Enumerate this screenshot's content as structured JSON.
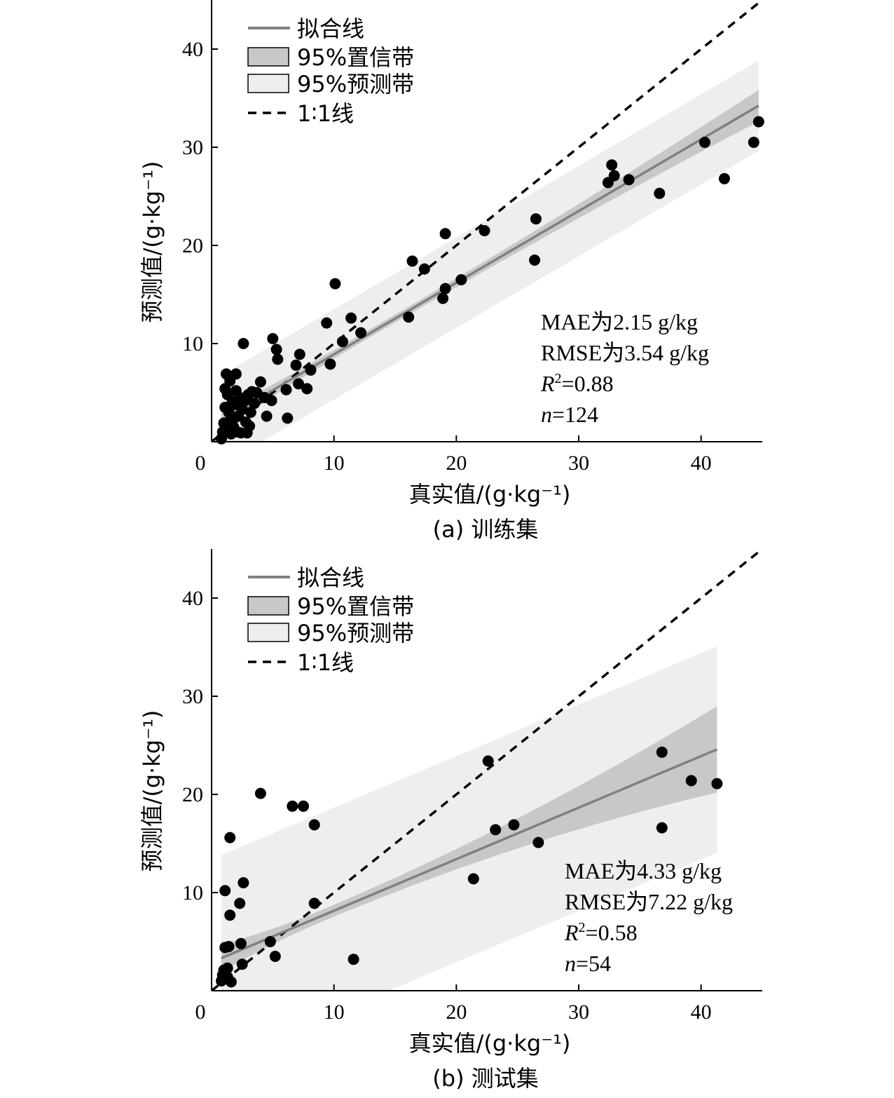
{
  "chart_data": [
    {
      "type": "scatter",
      "caption": "(a) 训练集",
      "xlabel": "真实值/(g·kg⁻¹)",
      "ylabel": "预测值/(g·kg⁻¹)",
      "xlim": [
        0,
        45
      ],
      "ylim": [
        0,
        45
      ],
      "xticks": [
        0,
        10,
        20,
        30,
        40
      ],
      "yticks": [
        10,
        20,
        30,
        40
      ],
      "legend": {
        "placement": "top-left",
        "fit_label": "拟合线",
        "ci_label": "95%置信带",
        "pi_label": "95%预测带",
        "ref_label": "1∶1线"
      },
      "annotations": [
        "MAE为2.15 g/kg",
        "RMSE为3.54 g/kg",
        "R²=0.88",
        "n=124"
      ],
      "fit": {
        "x_range": [
          0.8,
          44.7
        ],
        "slope": 0.73,
        "intercept": 1.6
      },
      "confidence_band": {
        "half_width_low_x": 0.8,
        "half_width_mid": 0.4,
        "half_width_high_x": 1.6,
        "mid_x": 14
      },
      "prediction_band": {
        "half_width": 4.6
      },
      "colors": {
        "fit": "#808080",
        "ci": "#c8c8c8",
        "pi": "#eeeeee",
        "points": "#000000"
      },
      "points": [
        [
          0.8,
          0.3
        ],
        [
          0.9,
          1.0
        ],
        [
          1.0,
          1.9
        ],
        [
          1.1,
          3.5
        ],
        [
          1.1,
          5.4
        ],
        [
          1.2,
          6.9
        ],
        [
          1.3,
          1.2
        ],
        [
          1.3,
          4.8
        ],
        [
          1.4,
          3.0
        ],
        [
          1.5,
          6.2
        ],
        [
          1.6,
          0.8
        ],
        [
          1.6,
          2.2
        ],
        [
          1.7,
          4.1
        ],
        [
          1.8,
          1.5
        ],
        [
          1.9,
          3.8
        ],
        [
          2.0,
          6.9
        ],
        [
          2.0,
          5.2
        ],
        [
          2.1,
          1.0
        ],
        [
          2.2,
          2.6
        ],
        [
          2.3,
          4.5
        ],
        [
          2.4,
          0.9
        ],
        [
          2.5,
          3.3
        ],
        [
          2.6,
          10.0
        ],
        [
          2.7,
          4.2
        ],
        [
          2.8,
          2.0
        ],
        [
          2.9,
          0.9
        ],
        [
          3.0,
          4.8
        ],
        [
          3.1,
          1.6
        ],
        [
          3.2,
          3.0
        ],
        [
          3.3,
          5.1
        ],
        [
          3.5,
          3.9
        ],
        [
          3.7,
          5.0
        ],
        [
          4.0,
          6.1
        ],
        [
          4.3,
          4.5
        ],
        [
          4.5,
          2.6
        ],
        [
          4.9,
          4.2
        ],
        [
          5.0,
          10.5
        ],
        [
          5.3,
          9.4
        ],
        [
          5.4,
          8.4
        ],
        [
          6.1,
          5.3
        ],
        [
          6.2,
          2.4
        ],
        [
          6.9,
          7.8
        ],
        [
          7.1,
          5.9
        ],
        [
          7.2,
          8.9
        ],
        [
          7.8,
          5.4
        ],
        [
          8.1,
          7.3
        ],
        [
          9.4,
          12.1
        ],
        [
          9.7,
          7.9
        ],
        [
          10.1,
          16.1
        ],
        [
          10.7,
          10.2
        ],
        [
          11.4,
          12.6
        ],
        [
          12.2,
          11.1
        ],
        [
          16.1,
          12.7
        ],
        [
          16.4,
          18.4
        ],
        [
          17.4,
          17.6
        ],
        [
          18.9,
          14.6
        ],
        [
          19.1,
          15.6
        ],
        [
          19.1,
          21.2
        ],
        [
          20.4,
          16.5
        ],
        [
          22.3,
          21.5
        ],
        [
          26.4,
          18.5
        ],
        [
          26.5,
          22.7
        ],
        [
          32.4,
          26.4
        ],
        [
          32.7,
          28.2
        ],
        [
          32.9,
          27.1
        ],
        [
          34.1,
          26.7
        ],
        [
          36.6,
          25.3
        ],
        [
          40.3,
          30.5
        ],
        [
          41.9,
          26.8
        ],
        [
          44.3,
          30.5
        ],
        [
          44.7,
          32.6
        ]
      ]
    },
    {
      "type": "scatter",
      "caption": "(b) 测试集",
      "xlabel": "真实值/(g·kg⁻¹)",
      "ylabel": "预测值/(g·kg⁻¹)",
      "xlim": [
        0,
        45
      ],
      "ylim": [
        0,
        45
      ],
      "xticks": [
        0,
        10,
        20,
        30,
        40
      ],
      "yticks": [
        10,
        20,
        30,
        40
      ],
      "legend": {
        "placement": "top-left",
        "fit_label": "拟合线",
        "ci_label": "95%置信带",
        "pi_label": "95%预测带",
        "ref_label": "1∶1线"
      },
      "annotations": [
        "MAE为4.33 g/kg",
        "RMSE为7.22 g/kg",
        "R²=0.58",
        "n=54"
      ],
      "fit": {
        "x_range": [
          0.8,
          41.3
        ],
        "slope": 0.525,
        "intercept": 2.9
      },
      "confidence_band": {
        "half_width_low_x": 1.4,
        "half_width_mid": 0.6,
        "half_width_high_x": 4.4,
        "mid_x": 9
      },
      "prediction_band": {
        "half_width": 10.5
      },
      "colors": {
        "fit": "#808080",
        "ci": "#c8c8c8",
        "pi": "#eeeeee",
        "points": "#000000"
      },
      "points": [
        [
          0.8,
          1.0
        ],
        [
          0.9,
          1.6
        ],
        [
          1.0,
          2.1
        ],
        [
          1.1,
          4.4
        ],
        [
          1.1,
          10.2
        ],
        [
          1.3,
          1.4
        ],
        [
          1.3,
          2.3
        ],
        [
          1.4,
          4.5
        ],
        [
          1.5,
          7.7
        ],
        [
          1.5,
          15.6
        ],
        [
          1.6,
          0.9
        ],
        [
          2.3,
          8.9
        ],
        [
          2.4,
          4.8
        ],
        [
          2.5,
          2.7
        ],
        [
          2.6,
          11.0
        ],
        [
          4.0,
          20.1
        ],
        [
          4.8,
          5.0
        ],
        [
          5.2,
          3.5
        ],
        [
          6.6,
          18.8
        ],
        [
          7.5,
          18.8
        ],
        [
          8.4,
          16.9
        ],
        [
          8.4,
          8.9
        ],
        [
          11.6,
          3.2
        ],
        [
          21.4,
          11.4
        ],
        [
          22.6,
          23.4
        ],
        [
          23.2,
          16.4
        ],
        [
          24.7,
          16.9
        ],
        [
          26.7,
          15.1
        ],
        [
          36.8,
          16.6
        ],
        [
          36.8,
          24.3
        ],
        [
          39.2,
          21.4
        ],
        [
          41.3,
          21.1
        ]
      ]
    }
  ]
}
